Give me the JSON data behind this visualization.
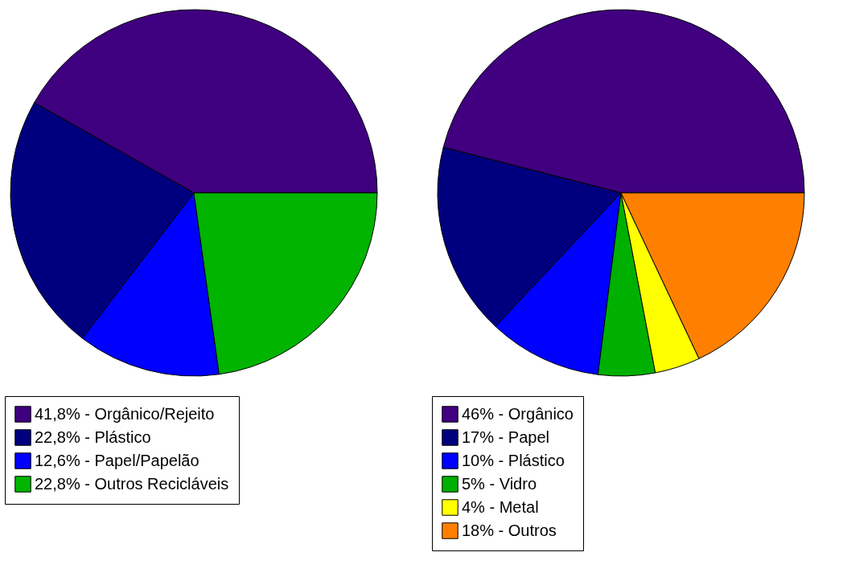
{
  "chart_data": [
    {
      "type": "pie",
      "categories": [
        "41,8% - Orgânico/Rejeito",
        "22,8% - Plástico",
        "12,6% - Papel/Papelão",
        "22,8% - Outros Recicláveis"
      ],
      "values": [
        41.8,
        22.8,
        12.6,
        22.8
      ],
      "colors": [
        "#3f007f",
        "#00007f",
        "#0000ff",
        "#00b400"
      ],
      "legend": "bottom"
    },
    {
      "type": "pie",
      "categories": [
        "46% - Orgânico",
        "17% - Papel",
        "10% - Plástico",
        "5% - Vidro",
        "4% - Metal",
        "18% - Outros"
      ],
      "values": [
        46,
        17,
        10,
        5,
        4,
        18
      ],
      "colors": [
        "#400080",
        "#00007f",
        "#0000ff",
        "#00b000",
        "#ffff00",
        "#ff8000"
      ],
      "legend": "bottom"
    }
  ]
}
